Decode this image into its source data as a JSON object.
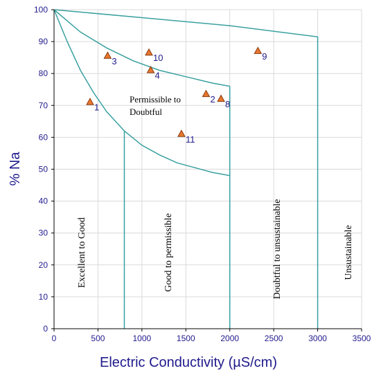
{
  "chart_data": {
    "type": "scatter",
    "title": "",
    "xlabel": "Electric Conductivity (µS/cm)",
    "ylabel": "% Na",
    "xlim": [
      0,
      3500
    ],
    "ylim": [
      0,
      100
    ],
    "xticks": [
      "0",
      "500",
      "1000",
      "1500",
      "2000",
      "2500",
      "3000",
      "3500"
    ],
    "yticks": [
      "0",
      "10",
      "20",
      "30",
      "40",
      "50",
      "60",
      "70",
      "80",
      "90",
      "100"
    ],
    "grid": true,
    "colors": {
      "axis_text": "#1f1a8c",
      "boundary": "#3aa0a0",
      "marker_fill": "#e8772e",
      "marker_stroke": "#8a3a10",
      "grid": "#d9d9d9"
    },
    "points": [
      {
        "label": "1",
        "x": 410,
        "y": 71
      },
      {
        "label": "2",
        "x": 1730,
        "y": 73.5
      },
      {
        "label": "3",
        "x": 610,
        "y": 85.5
      },
      {
        "label": "4",
        "x": 1100,
        "y": 81
      },
      {
        "label": "8",
        "x": 1900,
        "y": 72
      },
      {
        "label": "9",
        "x": 2320,
        "y": 87
      },
      {
        "label": "10",
        "x": 1080,
        "y": 86.5
      },
      {
        "label": "11",
        "x": 1450,
        "y": 61
      }
    ],
    "boundaries": {
      "excellent_upper": [
        [
          0,
          100
        ],
        [
          150,
          90
        ],
        [
          300,
          81
        ],
        [
          450,
          74
        ],
        [
          600,
          68
        ],
        [
          800,
          62
        ],
        [
          1000,
          57.5
        ],
        [
          1200,
          54.5
        ],
        [
          1400,
          52
        ],
        [
          1600,
          50.5
        ],
        [
          1800,
          49
        ],
        [
          2000,
          48
        ]
      ],
      "permissible_upper": [
        [
          0,
          100
        ],
        [
          300,
          93
        ],
        [
          600,
          88
        ],
        [
          900,
          84
        ],
        [
          1200,
          81
        ],
        [
          1500,
          79
        ],
        [
          1800,
          77
        ],
        [
          2000,
          76
        ]
      ],
      "doubtful_upper": [
        [
          0,
          100
        ],
        [
          1000,
          97.5
        ],
        [
          2000,
          95
        ],
        [
          3000,
          91.5
        ]
      ],
      "verticals": [
        {
          "x": 800,
          "y_top": 62
        },
        {
          "x": 2000,
          "y_top": 76
        },
        {
          "x": 3000,
          "y_top": 91.5
        }
      ]
    },
    "regions": {
      "excellent": "Excellent to Good",
      "good": "Good to permissible",
      "permissible_line1": "Permissible to",
      "permissible_line2": "Doubtful",
      "doubtful": "Doubtful to unsustainable",
      "unsustainable": "Unsustainable"
    }
  }
}
